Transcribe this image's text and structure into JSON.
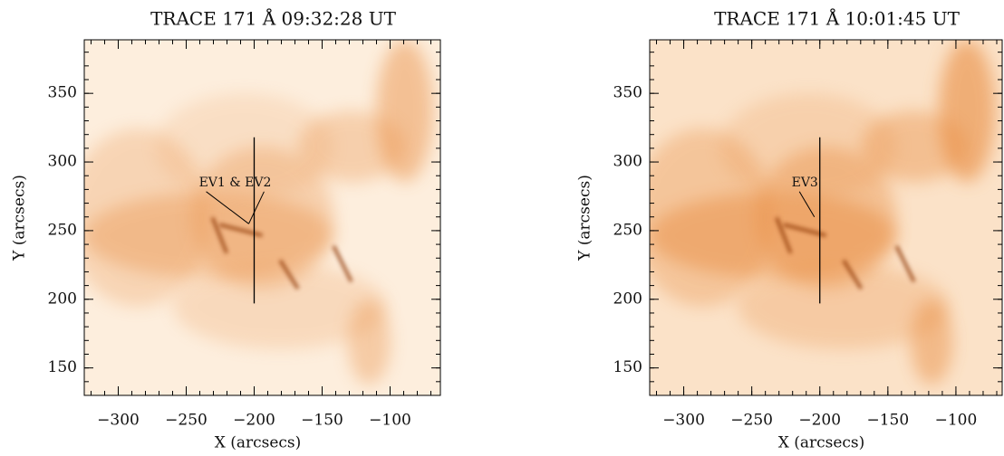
{
  "chart_data": [
    {
      "type": "image",
      "title": "TRACE 171 Å 09:32:28 UT",
      "x_label": "X (arcsecs)",
      "y_label": "Y (arcsecs)",
      "xlim": [
        -325,
        -63
      ],
      "ylim": [
        130,
        389
      ],
      "xticks": [
        {
          "value": -300,
          "label": "−300"
        },
        {
          "value": -250,
          "label": "−250"
        },
        {
          "value": -200,
          "label": "−200"
        },
        {
          "value": -150,
          "label": "−150"
        },
        {
          "value": -100,
          "label": "−100"
        }
      ],
      "yticks": [
        150,
        200,
        250,
        300,
        350
      ],
      "lines": [
        {
          "x": [
            -200,
            -200
          ],
          "y": [
            197,
            318
          ]
        }
      ],
      "annotations": [
        {
          "text": "EV1 & EV2",
          "x": -214,
          "y": 285,
          "point": [
            -204,
            255
          ]
        }
      ]
    },
    {
      "type": "image",
      "title": "TRACE 171 Å 10:01:45 UT",
      "x_label": "X (arcsecs)",
      "y_label": "Y (arcsecs)",
      "xlim": [
        -325,
        -66
      ],
      "ylim": [
        130,
        389
      ],
      "xticks": [
        {
          "value": -300,
          "label": "−300"
        },
        {
          "value": -250,
          "label": "−250"
        },
        {
          "value": -200,
          "label": "−200"
        },
        {
          "value": -150,
          "label": "−150"
        },
        {
          "value": -100,
          "label": "−100"
        }
      ],
      "yticks": [
        150,
        200,
        250,
        300,
        350
      ],
      "lines": [
        {
          "x": [
            -200,
            -200
          ],
          "y": [
            197,
            318
          ]
        }
      ],
      "annotations": [
        {
          "text": "EV3",
          "x": -211,
          "y": 285,
          "point": [
            -204,
            260
          ]
        }
      ]
    }
  ]
}
